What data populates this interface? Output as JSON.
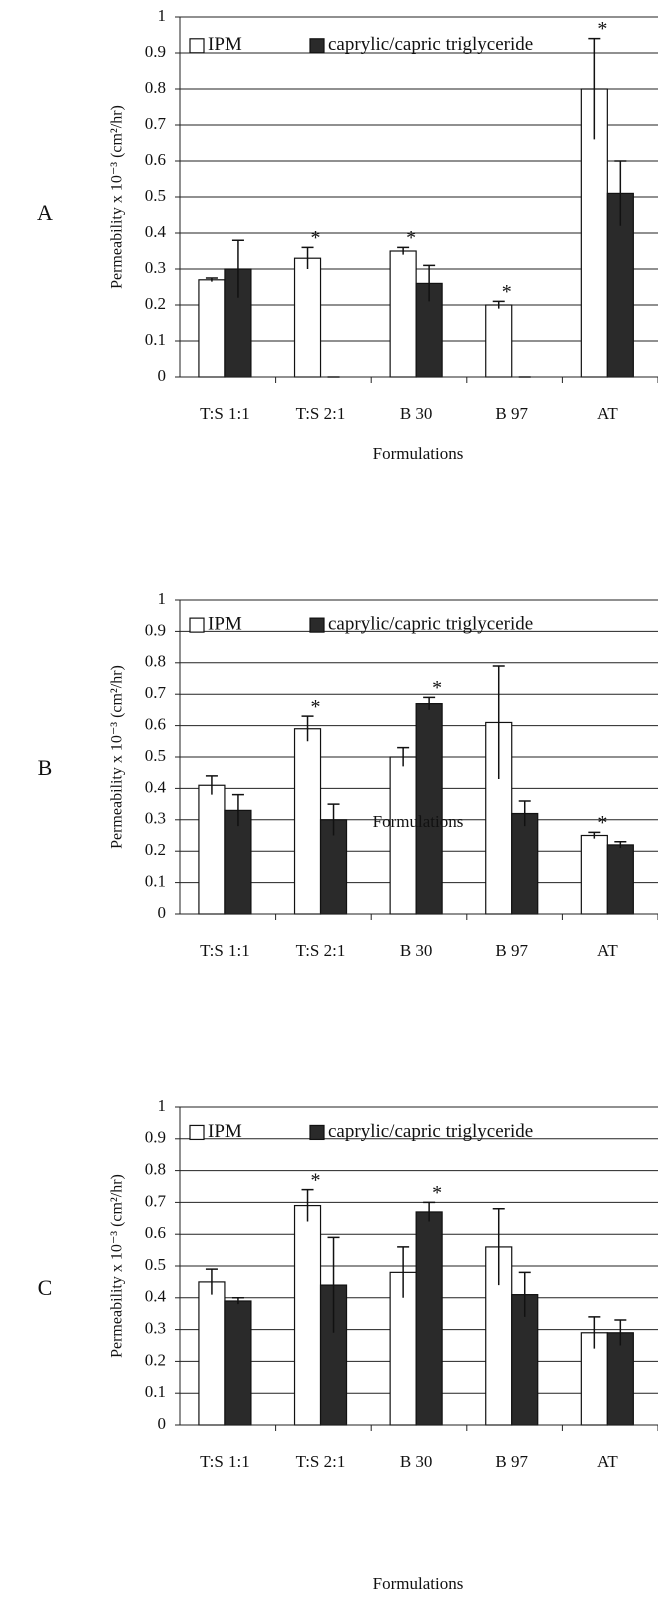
{
  "chart_data": [
    {
      "type": "bar",
      "panel": "A",
      "ylabel": "Permeability x 10⁻³ (cm²/hr)",
      "xlabel": "Formulations",
      "categories": [
        "T:S 1:1",
        "T:S 2:1",
        "B 30",
        "B 97",
        "AT"
      ],
      "series": [
        {
          "name": "IPM",
          "color": "#ffffff",
          "values": [
            0.27,
            0.33,
            0.35,
            0.2,
            0.8
          ],
          "errors": [
            0.005,
            0.03,
            0.01,
            0.01,
            0.14
          ],
          "marks": [
            null,
            "*",
            "*",
            "*",
            "*"
          ]
        },
        {
          "name": "caprylic/capric triglyceride",
          "color": "#2a2a2a",
          "values": [
            0.3,
            0,
            0.26,
            0,
            0.51
          ],
          "errors": [
            0.08,
            0,
            0.05,
            0,
            0.09
          ],
          "marks": [
            null,
            null,
            null,
            null,
            null
          ]
        }
      ],
      "ylim": [
        0,
        1
      ],
      "yticks": [
        0,
        0.1,
        0.2,
        0.3,
        0.4,
        0.5,
        0.6,
        0.7,
        0.8,
        0.9,
        1
      ],
      "grid": true,
      "legend": "top"
    },
    {
      "type": "bar",
      "panel": "B",
      "ylabel": "Permeability x 10⁻³ (cm²/hr)",
      "xlabel": "Formulations",
      "categories": [
        "T:S 1:1",
        "T:S 2:1",
        "B 30",
        "B 97",
        "AT"
      ],
      "series": [
        {
          "name": "IPM",
          "color": "#ffffff",
          "values": [
            0.41,
            0.59,
            0.5,
            0.61,
            0.25
          ],
          "errors": [
            0.03,
            0.04,
            0.03,
            0.18,
            0.01
          ],
          "marks": [
            null,
            "*",
            null,
            null,
            "*"
          ]
        },
        {
          "name": "caprylic/capric triglyceride",
          "color": "#2a2a2a",
          "values": [
            0.33,
            0.3,
            0.67,
            0.32,
            0.22
          ],
          "errors": [
            0.05,
            0.05,
            0.02,
            0.04,
            0.01
          ],
          "marks": [
            null,
            null,
            "*",
            null,
            null
          ]
        }
      ],
      "ylim": [
        0,
        1
      ],
      "yticks": [
        0,
        0.1,
        0.2,
        0.3,
        0.4,
        0.5,
        0.6,
        0.7,
        0.8,
        0.9,
        1
      ],
      "grid": true,
      "legend": "top"
    },
    {
      "type": "bar",
      "panel": "C",
      "ylabel": "Permeability x 10⁻³ (cm²/hr)",
      "xlabel": "Formulations",
      "categories": [
        "T:S 1:1",
        "T:S 2:1",
        "B 30",
        "B 97",
        "AT"
      ],
      "series": [
        {
          "name": "IPM",
          "color": "#ffffff",
          "values": [
            0.45,
            0.69,
            0.48,
            0.56,
            0.29
          ],
          "errors": [
            0.04,
            0.05,
            0.08,
            0.12,
            0.05
          ],
          "marks": [
            null,
            "*",
            null,
            null,
            null
          ]
        },
        {
          "name": "caprylic/capric triglyceride",
          "color": "#2a2a2a",
          "values": [
            0.39,
            0.44,
            0.67,
            0.41,
            0.29
          ],
          "errors": [
            0.01,
            0.15,
            0.03,
            0.07,
            0.04
          ],
          "marks": [
            null,
            null,
            "*",
            null,
            null
          ]
        }
      ],
      "ylim": [
        0,
        1
      ],
      "yticks": [
        0,
        0.1,
        0.2,
        0.3,
        0.4,
        0.5,
        0.6,
        0.7,
        0.8,
        0.9,
        1
      ],
      "grid": true,
      "legend": "top"
    }
  ]
}
